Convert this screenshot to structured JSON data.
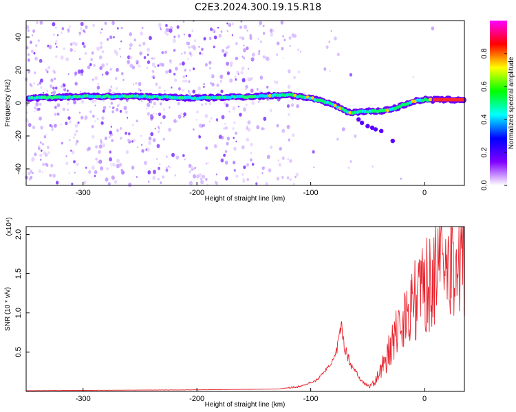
{
  "title": "C2E3.2024.300.19.15.R18",
  "chart_data": [
    {
      "type": "heatmap",
      "xlabel": "Height of straight line (km)",
      "ylabel": "Frequency (Hz)",
      "xlim": [
        -350,
        35
      ],
      "ylim": [
        -50,
        50
      ],
      "xticks": [
        -300,
        -200,
        -100,
        0
      ],
      "yticks": [
        -40,
        -20,
        0,
        20,
        40
      ],
      "colorbar": {
        "label": "Normalized spectral amplitude",
        "range": [
          0,
          1
        ],
        "ticks": [
          "0.0",
          "0.2",
          "0.4",
          "0.6",
          "0.8"
        ],
        "colormap": [
          "#ffffff",
          "#8000ff",
          "#0000ff",
          "#00ffff",
          "#00ff00",
          "#ffff00",
          "#ff0000",
          "#ff00ff"
        ]
      },
      "ridge": [
        {
          "x": -350,
          "y": 3
        },
        {
          "x": -300,
          "y": 4
        },
        {
          "x": -250,
          "y": 4
        },
        {
          "x": -200,
          "y": 3
        },
        {
          "x": -150,
          "y": 4
        },
        {
          "x": -120,
          "y": 5
        },
        {
          "x": -100,
          "y": 3
        },
        {
          "x": -80,
          "y": -1
        },
        {
          "x": -65,
          "y": -6
        },
        {
          "x": -55,
          "y": -5
        },
        {
          "x": -40,
          "y": -5
        },
        {
          "x": -25,
          "y": -3
        },
        {
          "x": -10,
          "y": 1
        },
        {
          "x": 0,
          "y": 2
        },
        {
          "x": 10,
          "y": 2
        },
        {
          "x": 35,
          "y": 2
        }
      ]
    },
    {
      "type": "line",
      "xlabel": "Height of straight line (km)",
      "ylabel": "SNR (10 * v/v)",
      "multiplier": "(x10⁴)",
      "xlim": [
        -350,
        35
      ],
      "ylim": [
        0,
        2.1
      ],
      "xticks": [
        -300,
        -200,
        -100,
        0
      ],
      "yticks": [
        "0.5",
        "1.0",
        "1.5",
        "2.0"
      ],
      "color": "#e8202a",
      "envelope": [
        {
          "x": -350,
          "y": 0.01
        },
        {
          "x": -200,
          "y": 0.02
        },
        {
          "x": -130,
          "y": 0.03
        },
        {
          "x": -110,
          "y": 0.06
        },
        {
          "x": -95,
          "y": 0.14
        },
        {
          "x": -85,
          "y": 0.3
        },
        {
          "x": -78,
          "y": 0.45
        },
        {
          "x": -73,
          "y": 0.82
        },
        {
          "x": -70,
          "y": 0.55
        },
        {
          "x": -65,
          "y": 0.35
        },
        {
          "x": -60,
          "y": 0.25
        },
        {
          "x": -55,
          "y": 0.12
        },
        {
          "x": -48,
          "y": 0.06
        },
        {
          "x": -42,
          "y": 0.2
        },
        {
          "x": -35,
          "y": 0.45
        },
        {
          "x": -28,
          "y": 0.8
        },
        {
          "x": -20,
          "y": 1.1
        },
        {
          "x": -12,
          "y": 1.3
        },
        {
          "x": -5,
          "y": 1.5
        },
        {
          "x": 5,
          "y": 1.7
        },
        {
          "x": 12,
          "y": 1.85
        },
        {
          "x": 20,
          "y": 1.85
        },
        {
          "x": 28,
          "y": 1.98
        },
        {
          "x": 35,
          "y": 2.05
        }
      ]
    }
  ]
}
